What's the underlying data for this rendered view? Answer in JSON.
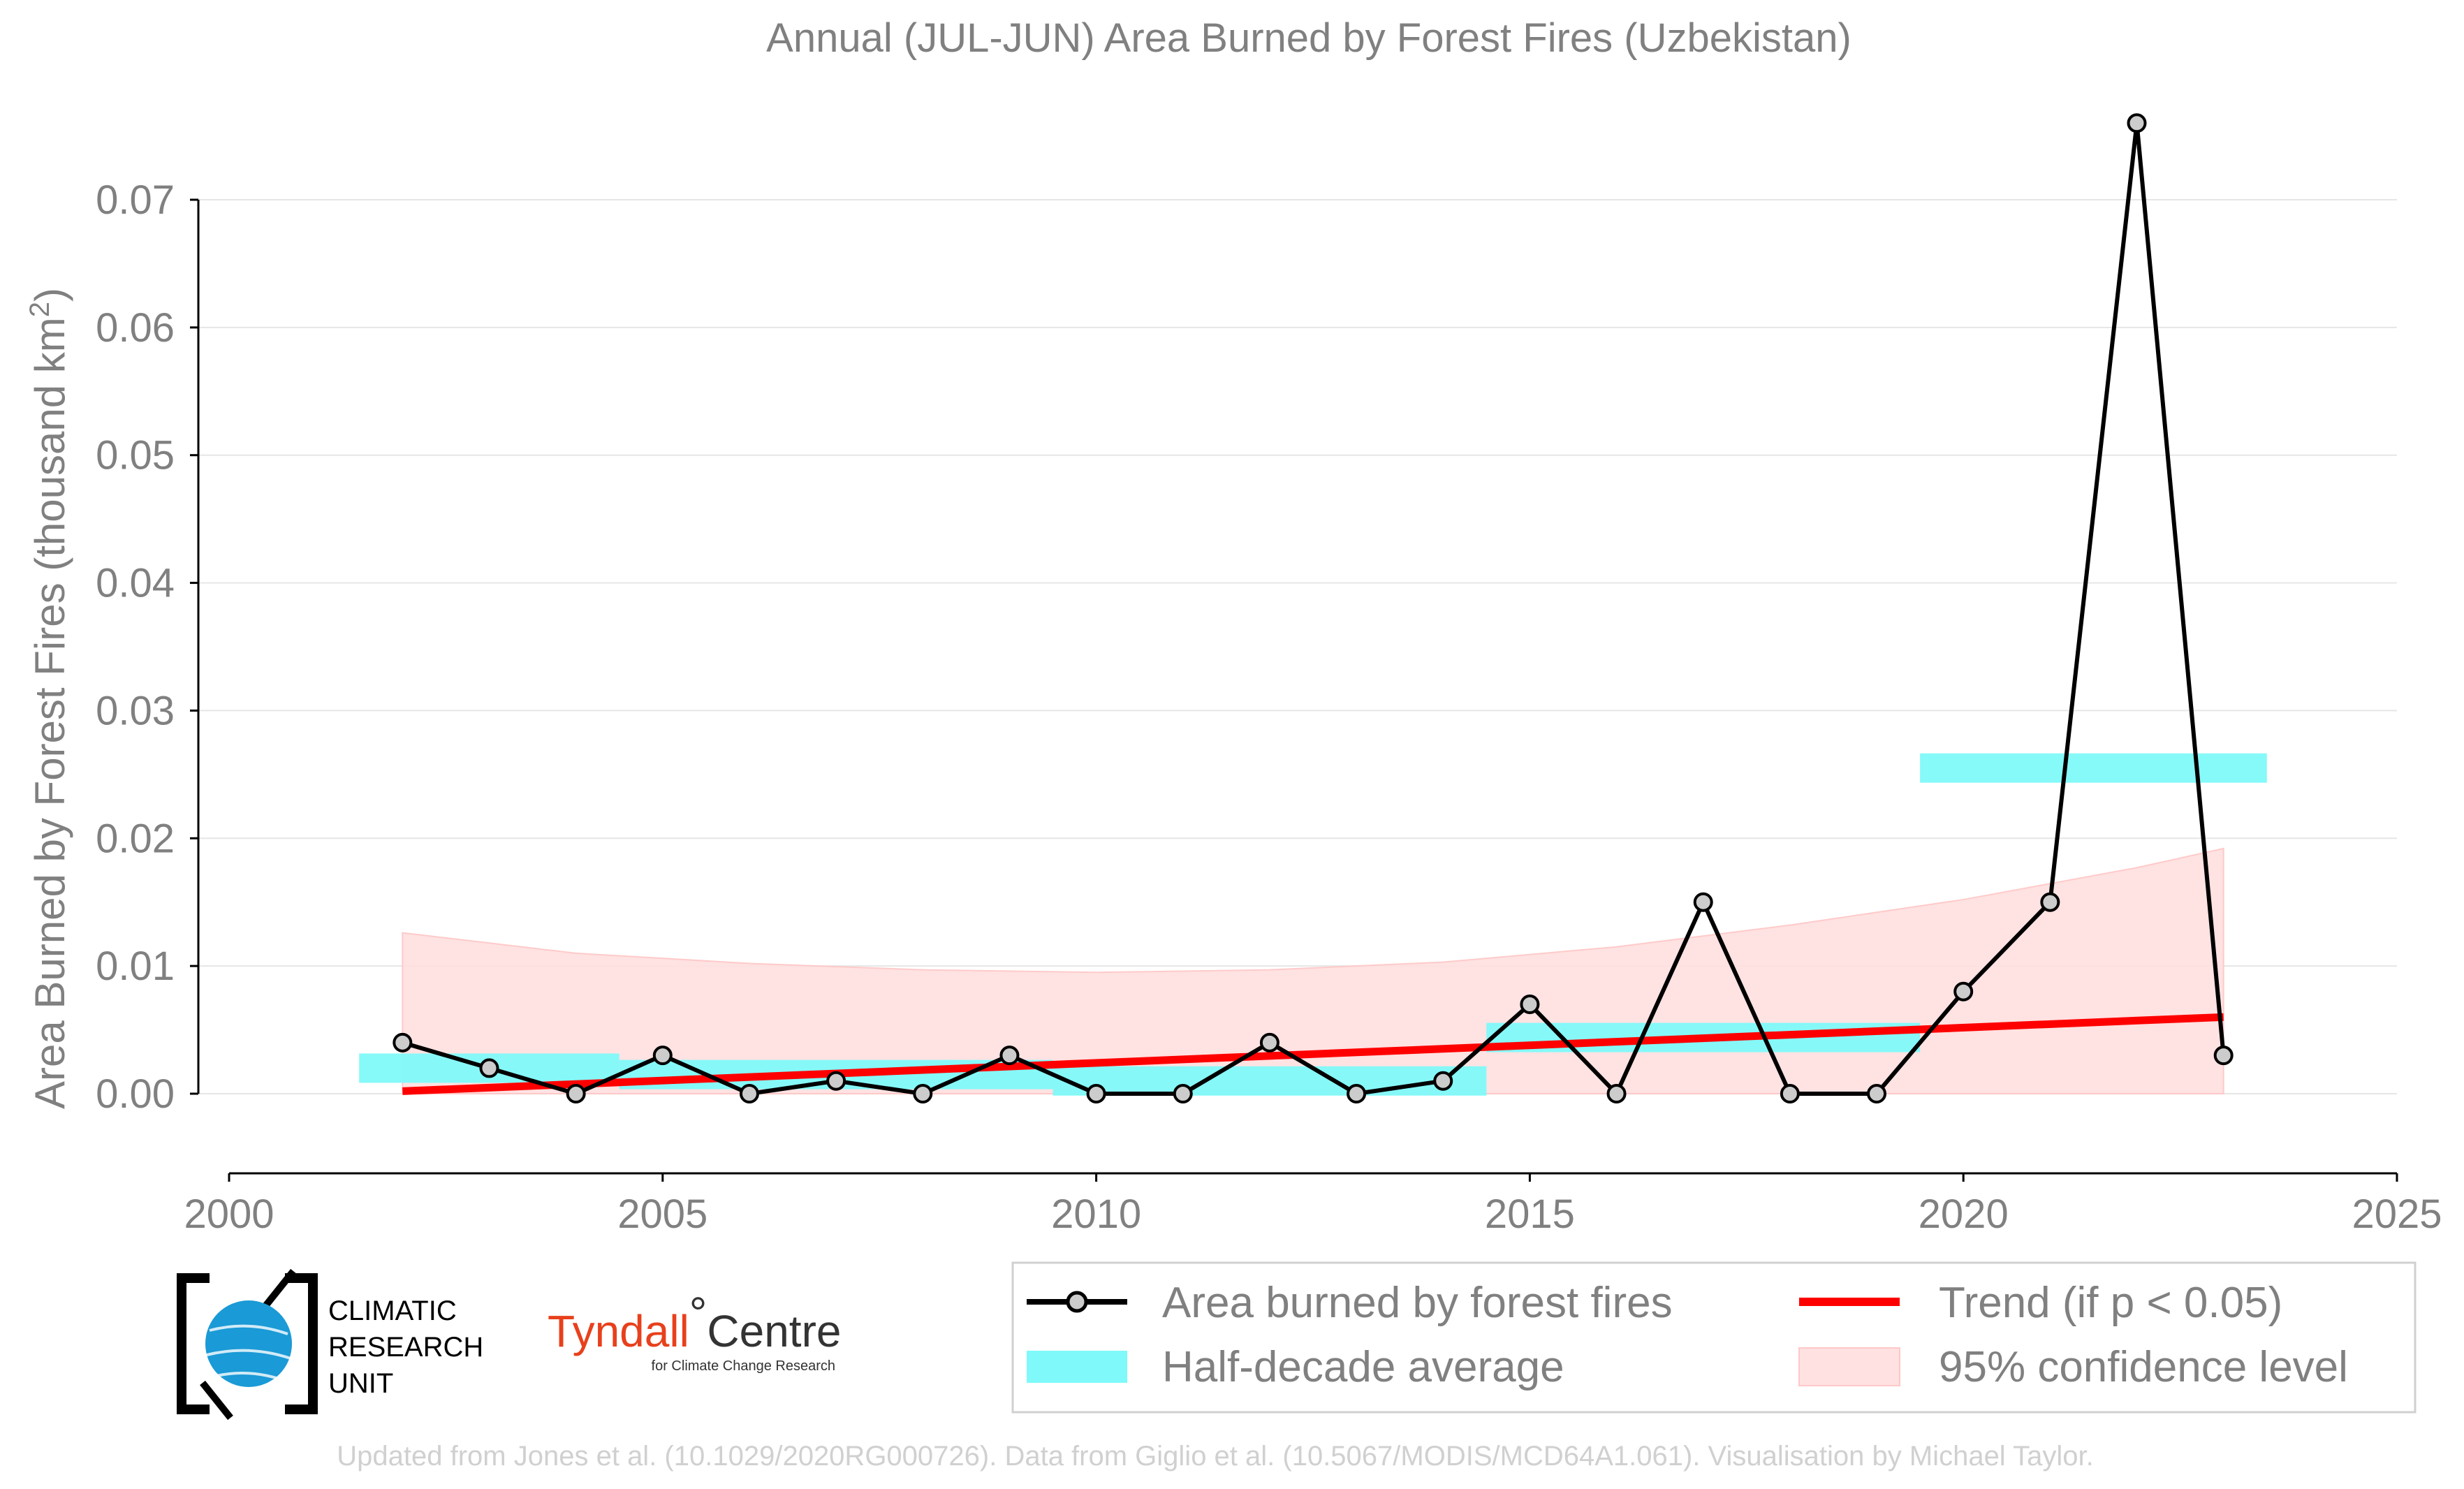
{
  "chart_data": {
    "type": "line",
    "title": "Annual (JUL-JUN) Area Burned by Forest Fires (Uzbekistan)",
    "xlabel": "",
    "ylabel": "Area Burned by Forest Fires (thousand km",
    "ylabel_sup": "2",
    "ylabel_end": ")",
    "xlim": [
      2000,
      2025
    ],
    "ylim": [
      -0.006,
      0.079
    ],
    "xticks": [
      2000,
      2005,
      2010,
      2015,
      2020,
      2025
    ],
    "yticks": [
      0.0,
      0.01,
      0.02,
      0.03,
      0.04,
      0.05,
      0.06,
      0.07
    ],
    "ytick_labels": [
      "0.00",
      "0.01",
      "0.02",
      "0.03",
      "0.04",
      "0.05",
      "0.06",
      "0.07"
    ],
    "grid": "horizontal",
    "series": [
      {
        "name": "Area burned by forest fires",
        "x": [
          2002,
          2003,
          2004,
          2005,
          2006,
          2007,
          2008,
          2009,
          2010,
          2011,
          2012,
          2013,
          2014,
          2015,
          2016,
          2017,
          2018,
          2019,
          2020,
          2021,
          2022,
          2023
        ],
        "values": [
          0.004,
          0.002,
          0.0,
          0.003,
          0.0,
          0.001,
          0.0,
          0.003,
          0.0,
          0.0,
          0.004,
          0.0,
          0.001,
          0.007,
          0.0,
          0.015,
          0.0,
          0.0,
          0.008,
          0.015,
          0.076,
          0.003
        ]
      }
    ],
    "half_decade_average": {
      "name": "Half-decade average",
      "bars": [
        {
          "x_start": 2001.5,
          "x_end": 2004.5,
          "value": 0.002
        },
        {
          "x_start": 2004.5,
          "x_end": 2009.5,
          "value": 0.0015
        },
        {
          "x_start": 2009.5,
          "x_end": 2014.5,
          "value": 0.001
        },
        {
          "x_start": 2014.5,
          "x_end": 2019.5,
          "value": 0.0044
        },
        {
          "x_start": 2019.5,
          "x_end": 2023.5,
          "value": 0.0255
        }
      ]
    },
    "trend": {
      "name": "Trend (if p < 0.05)",
      "x": [
        2002,
        2023
      ],
      "values": [
        0.0002,
        0.006
      ]
    },
    "confidence": {
      "name": "95% confidence level",
      "x": [
        2002,
        2004,
        2006,
        2008,
        2010,
        2012,
        2014,
        2016,
        2018,
        2020,
        2022,
        2023
      ],
      "upper": [
        0.0126,
        0.011,
        0.0102,
        0.0097,
        0.0095,
        0.0097,
        0.0103,
        0.0115,
        0.0132,
        0.0152,
        0.0177,
        0.0192
      ],
      "lower": [
        0.0,
        0.0,
        0.0,
        0.0,
        0.0,
        0.0,
        0.0,
        0.0,
        0.0,
        0.0,
        0.0,
        0.0
      ]
    },
    "legend_position": "bottom-right (below plot)",
    "colors": {
      "series": "#000000",
      "marker_fill": "#cccccc",
      "half_decade": "#7ff9f9",
      "trend": "#ff0000",
      "confidence": "#ffe1e1",
      "grid": "#e6e6e6",
      "text": "#808080"
    }
  },
  "logos": {
    "cru": [
      "CLIMATIC",
      "RESEARCH",
      "UNIT"
    ],
    "tyndall_main": "Tyndall",
    "tyndall_degree": "°",
    "tyndall_centre": "Centre",
    "tyndall_sub": "for Climate Change Research"
  },
  "footer": "Updated from Jones et al. (10.1029/2020RG000726). Data from Giglio et al. (10.5067/MODIS/MCD64A1.061). Visualisation by Michael Taylor."
}
